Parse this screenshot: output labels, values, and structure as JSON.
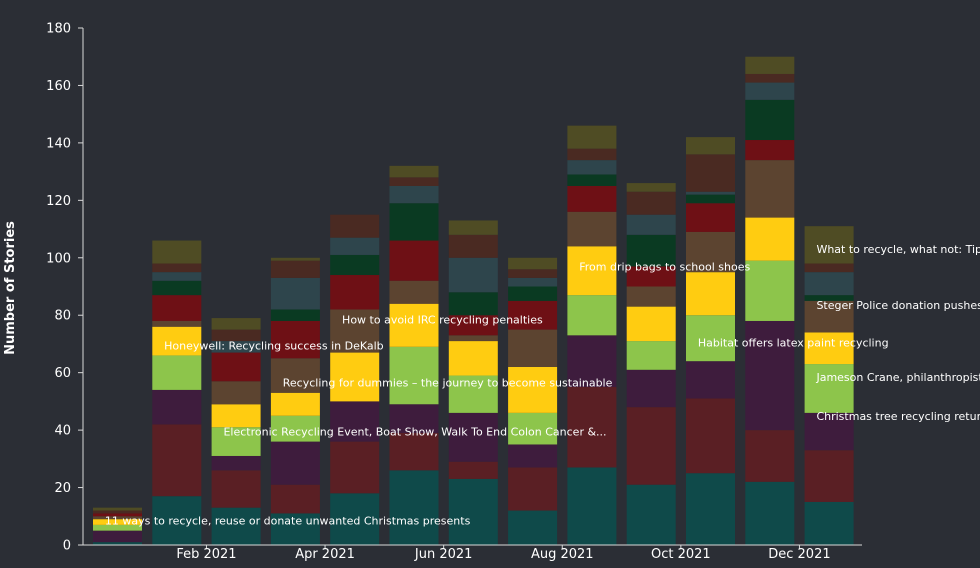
{
  "chart_data": {
    "type": "bar",
    "stacked": true,
    "ylabel": "Number of Stories",
    "xlabel": "",
    "ylim": [
      0,
      180
    ],
    "yticks": [
      0,
      20,
      40,
      60,
      80,
      100,
      120,
      140,
      160,
      180
    ],
    "grid": false,
    "legend": "none",
    "x_tick_labels": [
      {
        "label": "Feb 2021",
        "index": 1.5
      },
      {
        "label": "Apr 2021",
        "index": 3.5
      },
      {
        "label": "Jun 2021",
        "index": 5.5
      },
      {
        "label": "Aug 2021",
        "index": 7.5
      },
      {
        "label": "Oct 2021",
        "index": 9.5
      },
      {
        "label": "Dec 2021",
        "index": 11.5
      }
    ],
    "segment_colors": [
      "#0f4a4a",
      "#5a1f24",
      "#3e1c3d",
      "#8dc54b",
      "#ffcc11",
      "#5c4430",
      "#6e1015",
      "#0a3a22",
      "#2e454c",
      "#4a2a22",
      "#4f4c24"
    ],
    "bars": [
      [
        1,
        0,
        4,
        2,
        2,
        1,
        1,
        0,
        0,
        1,
        1
      ],
      [
        17,
        25,
        12,
        12,
        10,
        2,
        9,
        5,
        3,
        3,
        8
      ],
      [
        13,
        13,
        5,
        10,
        8,
        8,
        10,
        0,
        4,
        4,
        4
      ],
      [
        11,
        10,
        15,
        9,
        8,
        12,
        13,
        4,
        11,
        6,
        1
      ],
      [
        18,
        18,
        14,
        0,
        17,
        15,
        12,
        7,
        6,
        8,
        0
      ],
      [
        26,
        13,
        10,
        20,
        15,
        8,
        14,
        13,
        6,
        3,
        4
      ],
      [
        23,
        6,
        17,
        13,
        12,
        2,
        7,
        8,
        12,
        8,
        5
      ],
      [
        12,
        15,
        8,
        11,
        16,
        13,
        10,
        5,
        3,
        3,
        4
      ],
      [
        27,
        28,
        18,
        14,
        17,
        12,
        9,
        4,
        5,
        4,
        8
      ],
      [
        21,
        27,
        13,
        10,
        12,
        7,
        7,
        11,
        7,
        8,
        3
      ],
      [
        25,
        26,
        13,
        16,
        15,
        14,
        10,
        3,
        1,
        13,
        6
      ],
      [
        22,
        18,
        38,
        21,
        15,
        20,
        7,
        14,
        6,
        3,
        6
      ],
      [
        15,
        18,
        13,
        17,
        11,
        11,
        0,
        2,
        8,
        3,
        13
      ]
    ],
    "annotations": [
      {
        "text": "11 ways to recycle, reuse or donate unwanted Christmas presents",
        "x": 0.2,
        "y": 8.5
      },
      {
        "text": "Electronic Recycling Event, Boat Show, Walk To End Colon Cancer &...",
        "x": 2.2,
        "y": 39.5
      },
      {
        "text": "Honeywell: Recycling success in DeKalb",
        "x": 1.2,
        "y": 69.5
      },
      {
        "text": "Recycling for dummies – the journey to become sustainable",
        "x": 3.2,
        "y": 56.5
      },
      {
        "text": "How to avoid IRC recycling penalties",
        "x": 4.2,
        "y": 78.5
      },
      {
        "text": "From drip bags to school shoes",
        "x": 8.2,
        "y": 97
      },
      {
        "text": "Habitat offers latex paint recycling",
        "x": 10.2,
        "y": 70.5
      },
      {
        "text": "What to recycle, what not: Tips for Chippewa County residents",
        "x": 12.2,
        "y": 103
      },
      {
        "text": "Steger Police donation pushes Forest Preserve project",
        "x": 12.2,
        "y": 83.5
      },
      {
        "text": "Jameson Crane, philanthropist",
        "x": 12.2,
        "y": 58.5
      },
      {
        "text": "Christmas tree recycling returns",
        "x": 12.2,
        "y": 45
      }
    ]
  }
}
